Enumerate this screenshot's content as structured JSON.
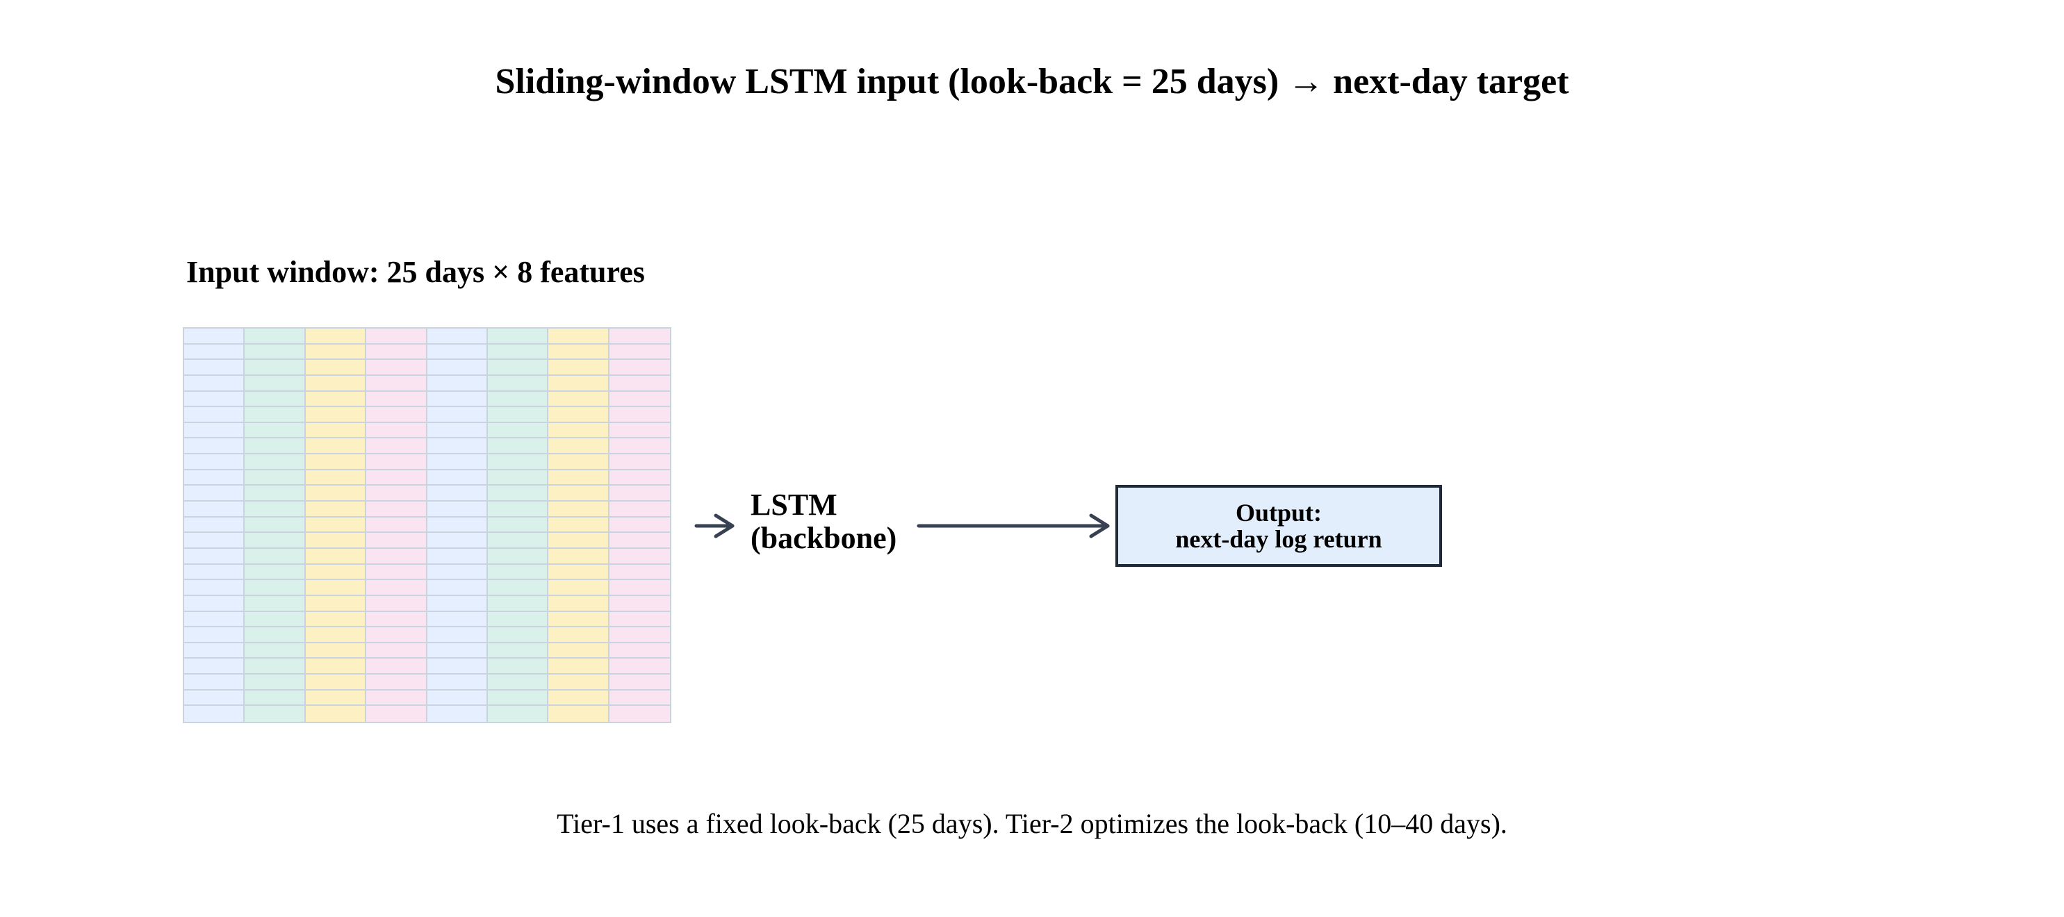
{
  "title": "Sliding-window LSTM input (look-back = 25 days) → next-day target",
  "input_window": {
    "label": "Input window: 25 days × 8 features",
    "days": 25,
    "features": 8,
    "column_colors": [
      "#e6efff",
      "#d9f1ea",
      "#fdf1c4",
      "#fbe4f1",
      "#e6efff",
      "#d9f1ea",
      "#fdf1c4",
      "#fbe4f1"
    ],
    "grid_line_color": "#c9d4df"
  },
  "model": {
    "line1": "LSTM",
    "line2": "(backbone)"
  },
  "output": {
    "line1": "Output:",
    "line2": "next-day log return",
    "fill": "#e3eefc",
    "border": "#1f2937"
  },
  "arrow_color": "#374151",
  "caption": "Tier-1 uses a fixed look-back (25 days). Tier-2 optimizes the look-back (10–40 days)."
}
